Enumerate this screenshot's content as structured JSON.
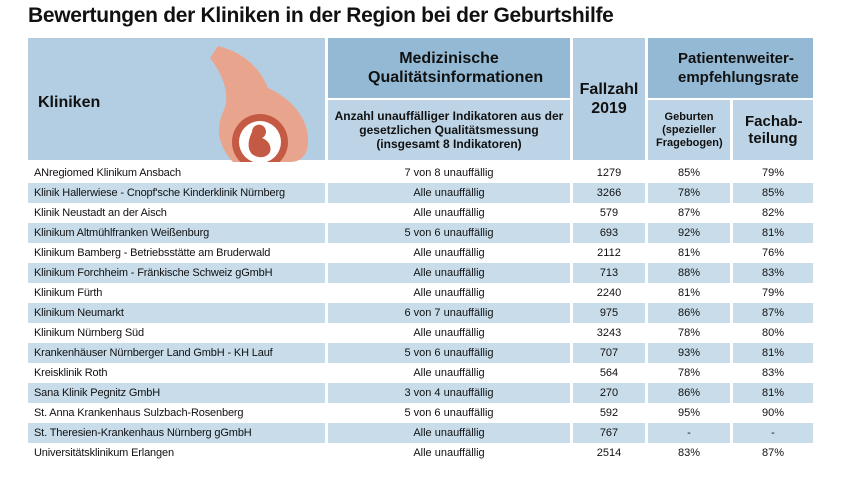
{
  "header": {
    "title": "Bewertungen der Kliniken in der Region bei der Geburtshilfe"
  },
  "table": {
    "columns": {
      "clinics": "Kliniken",
      "quality": "Medizinische Qualitätsinformationen",
      "quality_sub": "Anzahl unauffälliger Indikatoren aus der gesetzlichen Qualitätsmessung (insgesamt 8 Indikatoren)",
      "cases": "Fallzahl 2019",
      "recommend": "Patientenweiter-empfehlungsrate",
      "births": "Geburten (spezieller Fragebogen)",
      "department": "Fachab-teilung"
    },
    "rows": [
      [
        "ANregiomed Klinikum Ansbach",
        "7 von 8 unauffällig",
        "1279",
        "85%",
        "79%"
      ],
      [
        "Klinik Hallerwiese - Cnopf'sche Kinderklinik Nürnberg",
        "Alle unauffällig",
        "3266",
        "78%",
        "85%"
      ],
      [
        "Klinik Neustadt an der Aisch",
        "Alle unauffällig",
        "579",
        "87%",
        "82%"
      ],
      [
        "Klinikum Altmühlfranken Weißenburg",
        "5 von 6 unauffällig",
        "693",
        "92%",
        "81%"
      ],
      [
        "Klinikum Bamberg - Betriebsstätte am Bruderwald",
        "Alle unauffällig",
        "2112",
        "81%",
        "76%"
      ],
      [
        "Klinikum Forchheim - Fränkische Schweiz gGmbH",
        "Alle unauffällig",
        "713",
        "88%",
        "83%"
      ],
      [
        "Klinikum Fürth",
        "Alle unauffällig",
        "2240",
        "81%",
        "79%"
      ],
      [
        "Klinikum Neumarkt",
        "6 von 7 unauffällig",
        "975",
        "86%",
        "87%"
      ],
      [
        "Klinikum Nürnberg Süd",
        "Alle unauffällig",
        "3243",
        "78%",
        "80%"
      ],
      [
        "Krankenhäuser Nürnberger Land GmbH - KH Lauf",
        "5 von 6 unauffällig",
        "707",
        "93%",
        "81%"
      ],
      [
        "Kreisklinik Roth",
        "Alle unauffällig",
        "564",
        "78%",
        "83%"
      ],
      [
        "Sana Klinik Pegnitz GmbH",
        "3 von 4 unauffällig",
        "270",
        "86%",
        "81%"
      ],
      [
        "St. Anna Krankenhaus Sulzbach-Rosenberg",
        "5 von 6 unauffällig",
        "592",
        "95%",
        "90%"
      ],
      [
        "St. Theresien-Krankenhaus Nürnberg gGmbH",
        "Alle unauffällig",
        "767",
        "-",
        "-"
      ],
      [
        "Universitätsklinikum Erlangen",
        "Alle unauffällig",
        "2514",
        "83%",
        "87%"
      ]
    ]
  }
}
